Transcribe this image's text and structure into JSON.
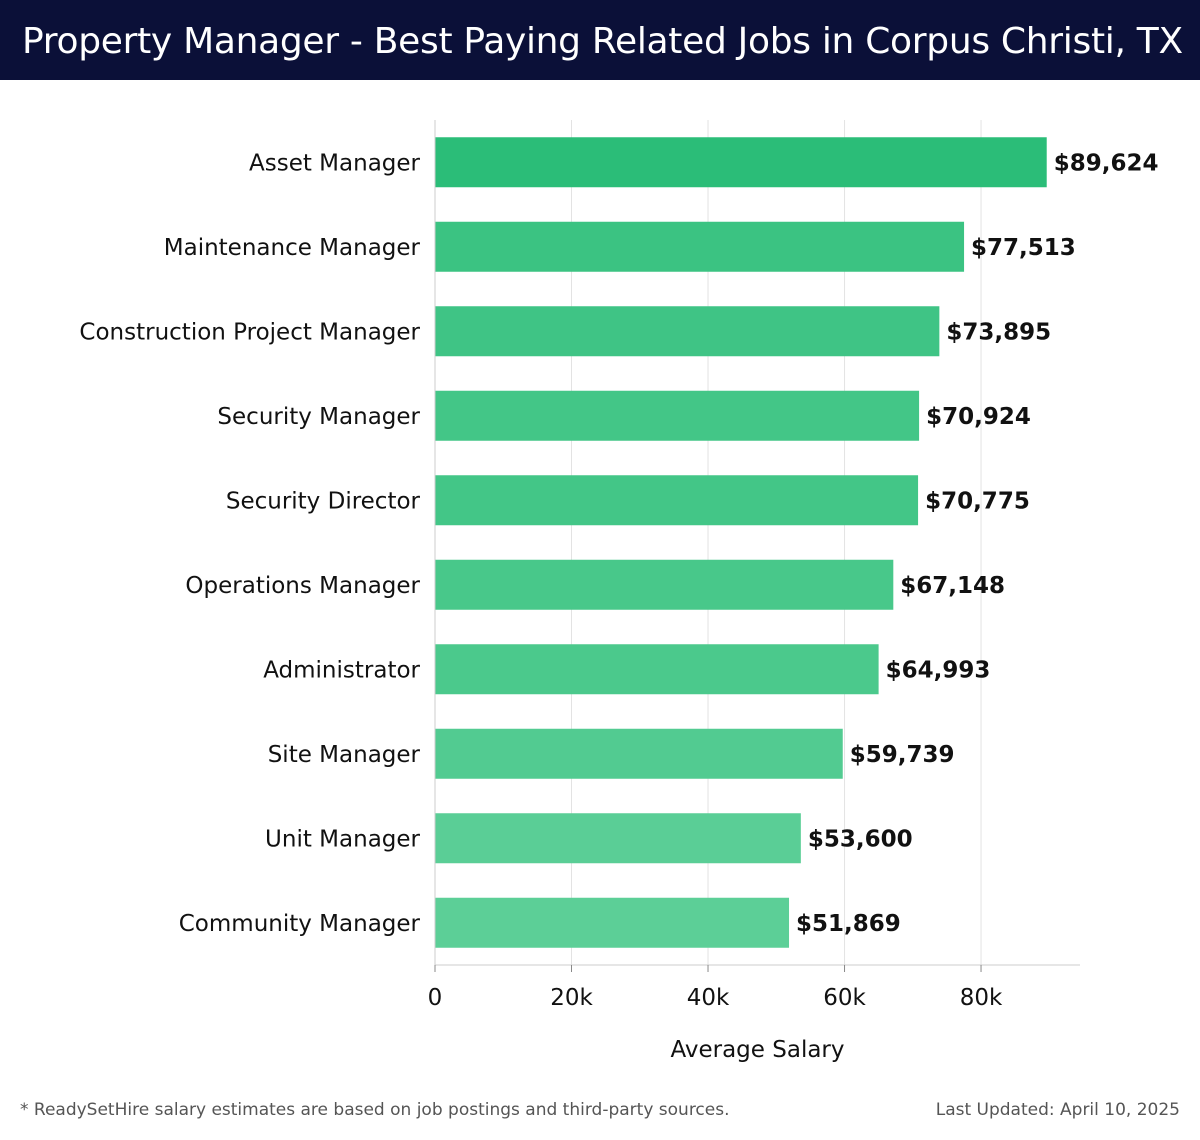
{
  "header": {
    "title": "Property Manager - Best Paying Related Jobs in Corpus Christi, TX"
  },
  "chart_data": {
    "type": "bar",
    "orientation": "horizontal",
    "categories": [
      "Asset Manager",
      "Maintenance Manager",
      "Construction Project Manager",
      "Security Manager",
      "Security Director",
      "Operations Manager",
      "Administrator",
      "Site Manager",
      "Unit Manager",
      "Community Manager"
    ],
    "values": [
      89624,
      77513,
      73895,
      70924,
      70775,
      67148,
      64993,
      59739,
      53600,
      51869
    ],
    "value_labels": [
      "$89,624",
      "$77,513",
      "$73,895",
      "$70,924",
      "$70,775",
      "$67,148",
      "$64,993",
      "$59,739",
      "$53,600",
      "$51,869"
    ],
    "xlabel": "Average Salary",
    "ylabel": "",
    "xlim": [
      0,
      94500
    ],
    "xticks": [
      0,
      20000,
      40000,
      60000,
      80000
    ],
    "xtick_labels": [
      "0",
      "20k",
      "40k",
      "60k",
      "80k"
    ],
    "grid": "vertical",
    "colors": {
      "bar_max": "#2bbd78",
      "bar_min": "#5ccf97",
      "grid": "#e3e3e3",
      "axis": "#cccccc"
    }
  },
  "footer": {
    "note": "* ReadySetHire salary estimates are based on job postings and third-party sources.",
    "updated": "Last Updated: April 10, 2025"
  }
}
